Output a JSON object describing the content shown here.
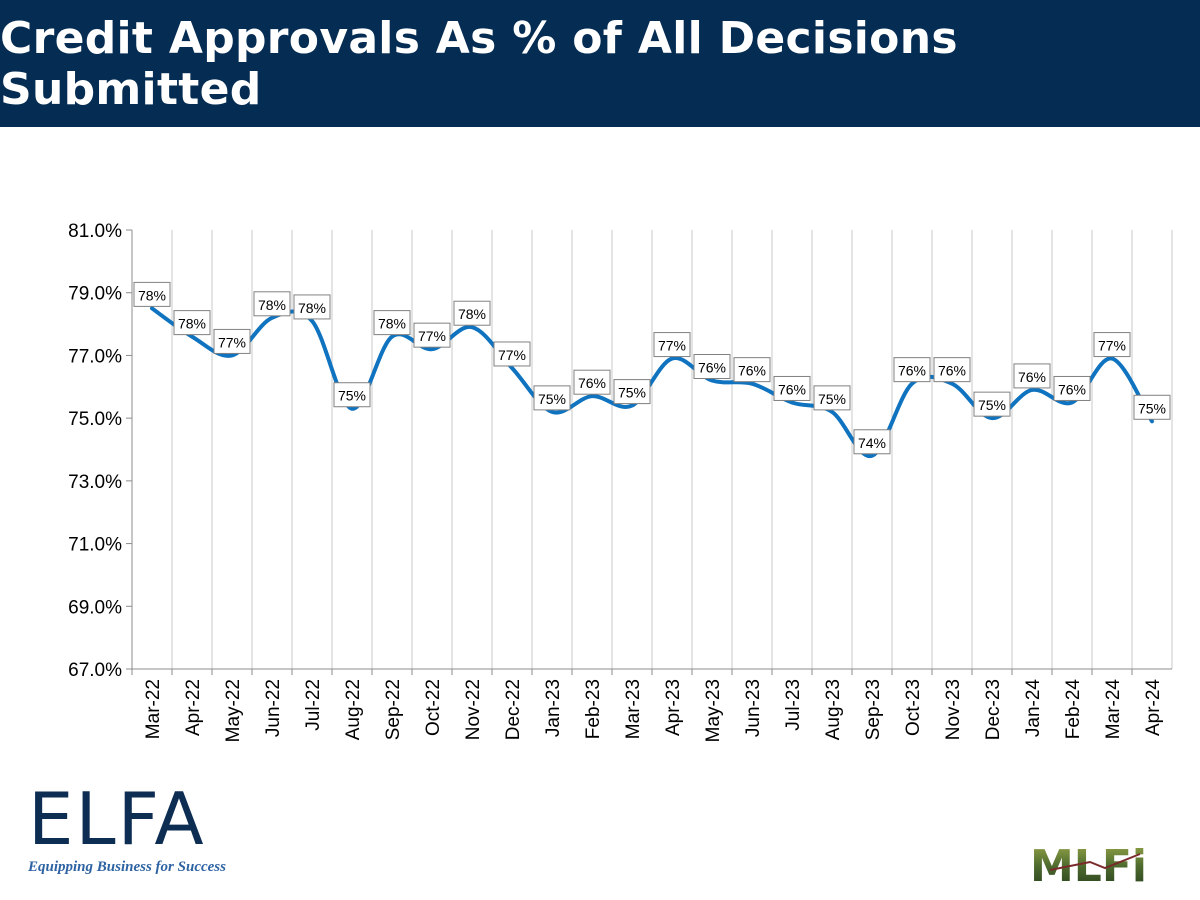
{
  "header": {
    "title": "Credit Approvals As % of All Decisions Submitted"
  },
  "chart_data": {
    "type": "line",
    "title": "Credit Approvals As % of All Decisions Submitted",
    "xlabel": "",
    "ylabel": "",
    "categories": [
      "Mar-22",
      "Apr-22",
      "May-22",
      "Jun-22",
      "Jul-22",
      "Aug-22",
      "Sep-22",
      "Oct-22",
      "Nov-22",
      "Dec-22",
      "Jan-23",
      "Feb-23",
      "Mar-23",
      "Apr-23",
      "May-23",
      "Jun-23",
      "Jul-23",
      "Aug-23",
      "Sep-23",
      "Oct-23",
      "Nov-23",
      "Dec-23",
      "Jan-24",
      "Feb-24",
      "Mar-24",
      "Apr-24"
    ],
    "values": [
      78.5,
      77.6,
      77.0,
      78.2,
      78.1,
      75.3,
      77.6,
      77.2,
      77.9,
      76.6,
      75.2,
      75.7,
      75.4,
      76.9,
      76.2,
      76.1,
      75.5,
      75.2,
      73.8,
      76.1,
      76.1,
      75.0,
      75.9,
      75.5,
      76.9,
      74.9
    ],
    "data_labels": [
      "78%",
      "78%",
      "77%",
      "78%",
      "78%",
      "75%",
      "78%",
      "77%",
      "78%",
      "77%",
      "75%",
      "76%",
      "75%",
      "77%",
      "76%",
      "76%",
      "76%",
      "75%",
      "74%",
      "76%",
      "76%",
      "75%",
      "76%",
      "76%",
      "77%",
      "75%"
    ],
    "yticks": [
      "67.0%",
      "69.0%",
      "71.0%",
      "73.0%",
      "75.0%",
      "77.0%",
      "79.0%",
      "81.0%"
    ],
    "ylim": [
      67,
      81
    ],
    "grid": "vertical",
    "legend": "none",
    "line_color": "#0f73c0"
  },
  "logos": {
    "elfa_text": "ELFA",
    "elfa_tagline": "Equipping Business for Success",
    "mlfi_text": "MLFi"
  }
}
